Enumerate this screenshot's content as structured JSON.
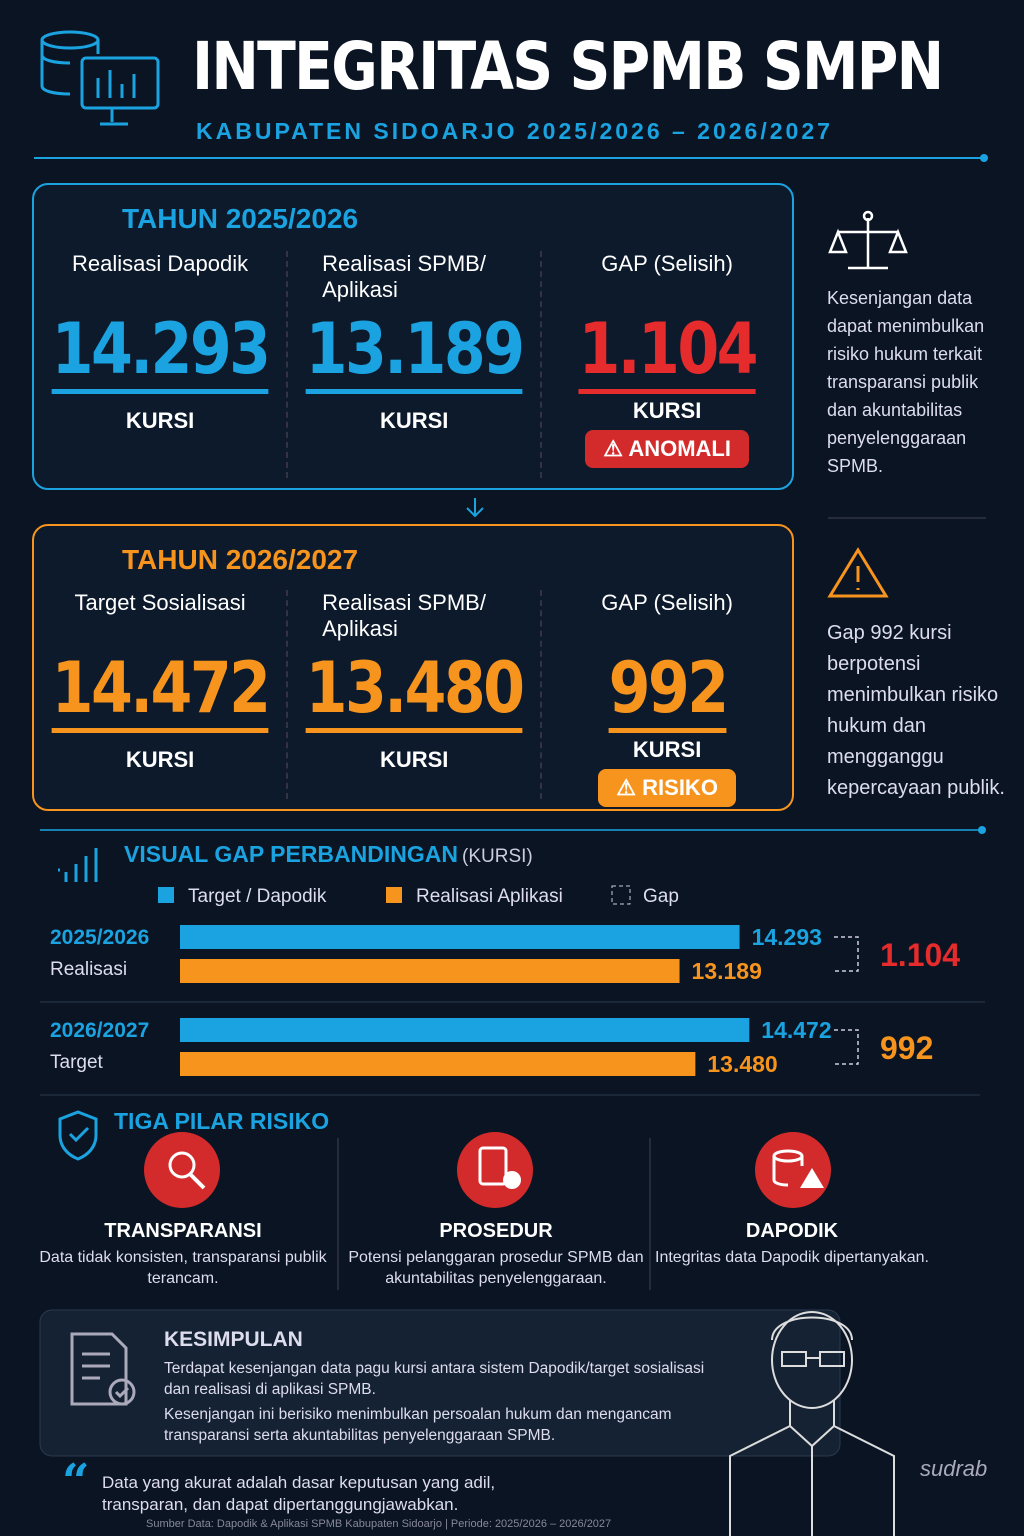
{
  "header": {
    "title": "INTEGRITAS SPMB SMPN",
    "subtitle": "KABUPATEN SIDOARJO 2025/2026 – 2026/2027"
  },
  "period_1": {
    "title": "TAHUN 2025/2026",
    "stats": [
      {
        "label": "Realisasi Dapodik",
        "value": "14.293",
        "unit": "KURSI"
      },
      {
        "label": "Realisasi SPMB/ Aplikasi",
        "value": "13.189",
        "unit": "KURSI"
      },
      {
        "label": "GAP (Selisih)",
        "value": "1.104",
        "unit": "KURSI"
      }
    ],
    "badge": "ANOMALI"
  },
  "period_2": {
    "title": "TAHUN 2026/2027",
    "stats": [
      {
        "label": "Target Sosialisasi",
        "value": "14.472",
        "unit": "KURSI"
      },
      {
        "label": "Realisasi SPMB/ Aplikasi",
        "value": "13.480",
        "unit": "KURSI"
      },
      {
        "label": "GAP (Selisih)",
        "value": "992",
        "unit": "KURSI"
      }
    ],
    "badge": "RISIKO"
  },
  "side_notes": [
    "Kesenjangan data dapat menimbulkan risiko hukum terkait transparansi publik dan akuntabilitas penyelenggaraan SPMB.",
    "Gap 992 kursi berpotensi menimbulkan risiko hukum dan mengganggu kepercayaan publik."
  ],
  "chart_data": {
    "type": "bar",
    "orientation": "horizontal",
    "title": "VISUAL GAP PERBANDINGAN",
    "unit": "(KURSI)",
    "categories": [
      "2025/2026",
      "2026/2027"
    ],
    "row_labels": [
      "Realisasi",
      "Target"
    ],
    "series": [
      {
        "name": "Target / Dapodik",
        "color": "#1aa3e0",
        "values": [
          14293,
          14472
        ],
        "value_labels": [
          "14.293",
          "14.472"
        ]
      },
      {
        "name": "Realisasi Aplikasi",
        "color": "#f7941d",
        "values": [
          13189,
          13480
        ],
        "value_labels": [
          "13.189",
          "13.480"
        ]
      }
    ],
    "gaps": {
      "name": "Gap",
      "values": [
        1104,
        992
      ],
      "value_labels": [
        "1.104",
        "992"
      ],
      "colors": [
        "#e52b2b",
        "#f7941d"
      ]
    },
    "xlim": [
      4000,
      15000
    ]
  },
  "pillars": {
    "title": "TIGA PILAR RISIKO",
    "items": [
      {
        "title": "TRANSPARANSI",
        "text": "Data tidak konsisten, transparansi publik terancam."
      },
      {
        "title": "PROSEDUR",
        "text": "Potensi pelanggaran prosedur SPMB dan akuntabilitas penyelenggaraan."
      },
      {
        "title": "DAPODIK",
        "text": "Integritas data Dapodik dipertanyakan."
      }
    ]
  },
  "conclusion": {
    "title": "KESIMPULAN",
    "paragraphs": [
      "Terdapat kesenjangan data pagu kursi antara sistem Dapodik/target sosialisasi dan realisasi di aplikasi SPMB.",
      "Kesenjangan ini berisiko menimbulkan persoalan hukum dan mengancam transparansi serta akuntabilitas penyelenggaraan SPMB."
    ]
  },
  "quote": "Data yang akurat adalah dasar keputusan yang adil, transparan, dan dapat dipertanggungjawabkan.",
  "signature": "sudrab",
  "source": "Sumber Data: Dapodik & Aplikasi SPMB Kabupaten Sidoarjo | Periode: 2025/2026 – 2026/2027"
}
